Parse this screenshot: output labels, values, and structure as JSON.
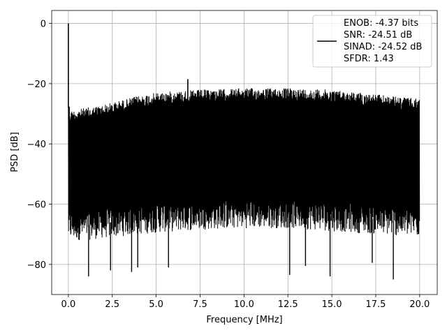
{
  "chart_data": {
    "type": "line",
    "title": "",
    "xlabel": "Frequency [MHz]",
    "ylabel": "PSD [dB]",
    "xlim": [
      -0.95,
      21.0
    ],
    "ylim": [
      -90.0,
      4.3
    ],
    "xticks": [
      0.0,
      2.5,
      5.0,
      7.5,
      10.0,
      12.5,
      15.0,
      17.5,
      20.0
    ],
    "xtick_labels": [
      "0.0",
      "2.5",
      "5.0",
      "7.5",
      "10.0",
      "12.5",
      "15.0",
      "17.5",
      "20.0"
    ],
    "yticks": [
      0,
      -20,
      -40,
      -60,
      -80
    ],
    "ytick_labels": [
      "0",
      "−20",
      "−40",
      "−60",
      "−80"
    ],
    "grid": true,
    "legend_position": "upper right",
    "series": [
      {
        "color": "#000000",
        "description": "dense noise floor PSD",
        "x_range": [
          0.0,
          20.0
        ],
        "upper_envelope": {
          "x": [
            0.0,
            0.1,
            0.5,
            1.0,
            2.0,
            3.0,
            4.0,
            5.0,
            6.0,
            7.5,
            10.0,
            12.5,
            15.0,
            17.5,
            19.0,
            20.0
          ],
          "y": [
            -24.0,
            -29.0,
            -28.5,
            -28.0,
            -27.0,
            -25.5,
            -24.0,
            -23.0,
            -22.5,
            -22.0,
            -21.5,
            -21.5,
            -22.0,
            -23.5,
            -24.5,
            -25.0
          ]
        },
        "lower_envelope": {
          "x": [
            0.0,
            1.0,
            2.5,
            5.0,
            7.5,
            10.0,
            12.5,
            15.0,
            17.5,
            20.0
          ],
          "y": [
            -70.0,
            -70.0,
            -69.0,
            -67.5,
            -66.5,
            -66.0,
            -66.0,
            -67.0,
            -68.0,
            -69.0
          ]
        },
        "peaks": [
          {
            "x": 0.0,
            "y": 0.0
          },
          {
            "x": 6.8,
            "y": -18.5
          }
        ],
        "dips": [
          {
            "x": 1.15,
            "y": -84.0
          },
          {
            "x": 2.4,
            "y": -82.0
          },
          {
            "x": 3.6,
            "y": -82.5
          },
          {
            "x": 3.95,
            "y": -81.0
          },
          {
            "x": 5.7,
            "y": -81.0
          },
          {
            "x": 12.6,
            "y": -83.5
          },
          {
            "x": 13.5,
            "y": -80.5
          },
          {
            "x": 14.9,
            "y": -84.0
          },
          {
            "x": 17.3,
            "y": -79.5
          },
          {
            "x": 18.5,
            "y": -85.0
          }
        ]
      }
    ],
    "legend": {
      "lines": [
        "ENOB: -4.37 bits",
        "SNR: -24.51 dB",
        "SINAD: -24.52 dB",
        "SFDR: 1.43"
      ]
    }
  }
}
